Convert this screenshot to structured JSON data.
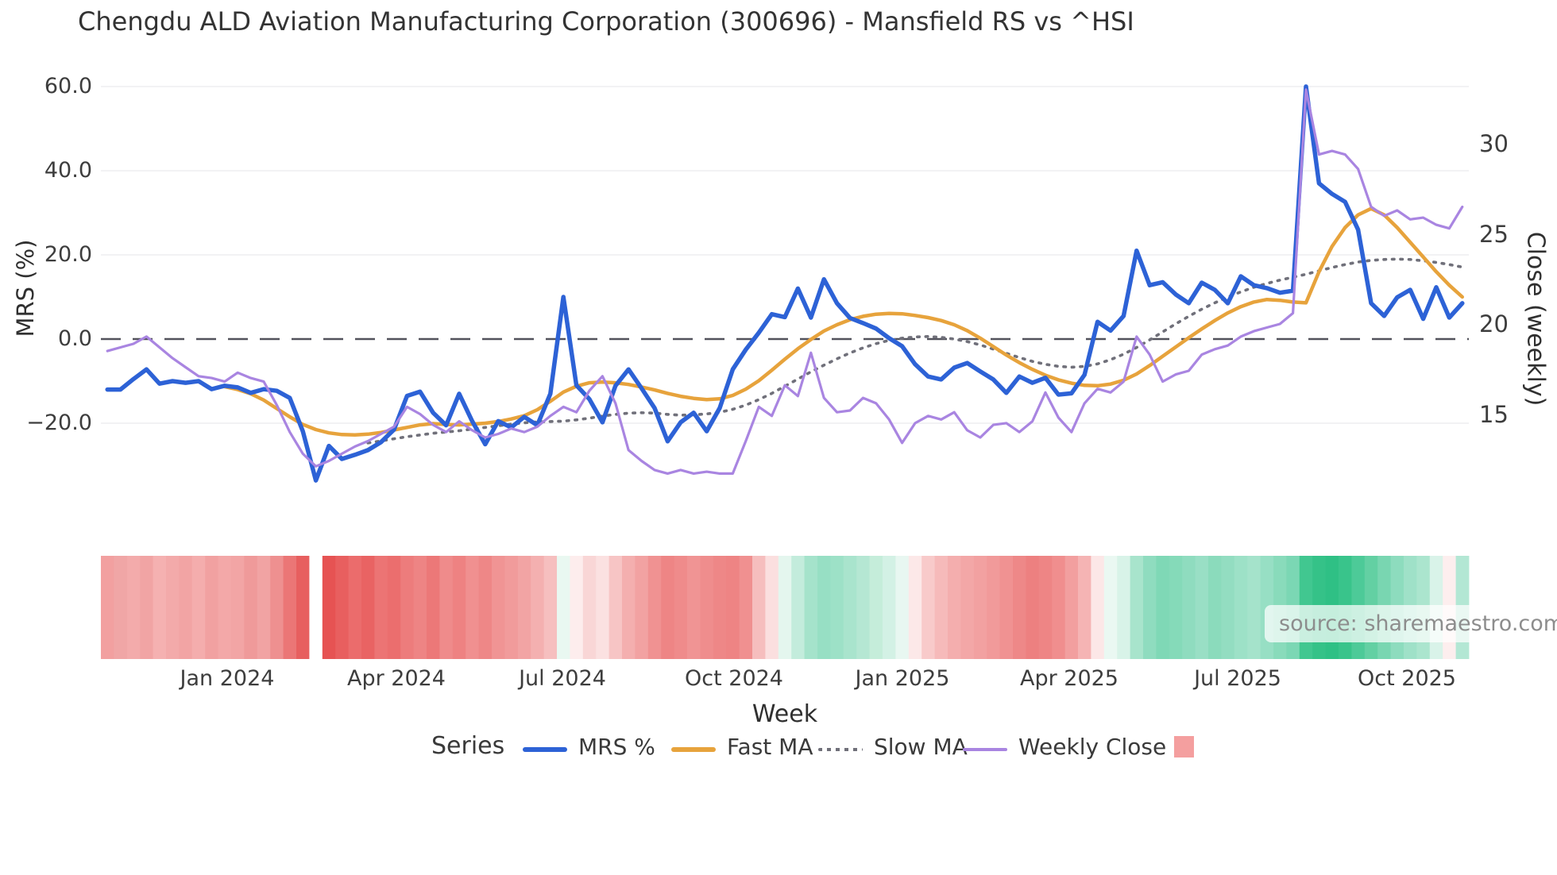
{
  "title": "Chengdu ALD Aviation Manufacturing Corporation (300696) - Mansfield RS vs ^HSI",
  "source": "source: sharemaestro.com",
  "axes": {
    "left": {
      "label": "MRS (%)",
      "ticks": [
        "60.0",
        "40.0",
        "20.0",
        "0.0",
        "−20.0"
      ]
    },
    "right": {
      "label": "Close (weekly)",
      "ticks": [
        "30",
        "25",
        "20",
        "15"
      ]
    },
    "x": {
      "label": "Week",
      "ticks": [
        "Jan 2024",
        "Apr 2024",
        "Jul 2024",
        "Oct 2024",
        "Jan 2025",
        "Apr 2025",
        "Jul 2025",
        "Oct 2025"
      ]
    }
  },
  "legend": {
    "title": "Series",
    "items": [
      {
        "label": "MRS %",
        "color": "#2d62d6",
        "style": "solid"
      },
      {
        "label": "Fast MA",
        "color": "#e7a33c",
        "style": "solid"
      },
      {
        "label": "Slow MA",
        "color": "#70707a",
        "style": "dotted"
      },
      {
        "label": "Weekly Close",
        "color": "#a985e1",
        "style": "solid"
      },
      {
        "label": "",
        "color": "#f49f9f",
        "style": "square"
      }
    ]
  },
  "chart_data": {
    "type": "line",
    "title": "Chengdu ALD Aviation Manufacturing Corporation (300696) - Mansfield RS vs ^HSI",
    "xlabel": "Week",
    "ylabel_left": "MRS (%)",
    "ylabel_right": "Close (weekly)",
    "n_weeks": 105,
    "x_tick_week_index": [
      9,
      22,
      35,
      48,
      61,
      74,
      87,
      100
    ],
    "x_tick_labels": [
      "Jan 2024",
      "Apr 2024",
      "Jul 2024",
      "Oct 2024",
      "Jan 2025",
      "Apr 2025",
      "Jul 2025",
      "Oct 2025"
    ],
    "left_ticks": [
      60,
      40,
      20,
      0,
      -20
    ],
    "left_ylim": [
      -40,
      65
    ],
    "right_ticks": [
      30,
      25,
      20,
      15
    ],
    "right_ylim": [
      9.5,
      34.5
    ],
    "zero_dashed_line": 0,
    "grid": "horizontal-light",
    "legend_position": "bottom",
    "series": [
      {
        "name": "MRS %",
        "axis": "left",
        "color": "#2d62d6",
        "width": 5.5,
        "dash": null,
        "values": [
          -12,
          -12,
          -9.5,
          -7.2,
          -10.6,
          -10,
          -10.4,
          -10,
          -11.9,
          -11.1,
          -11.5,
          -12.8,
          -11.9,
          -12.3,
          -14,
          -21.9,
          -33.6,
          -25.4,
          -28.5,
          -27.5,
          -26.4,
          -24.5,
          -21.5,
          -13.5,
          -12.5,
          -17.5,
          -20.5,
          -13,
          -19.5,
          -25,
          -19.5,
          -21,
          -18.5,
          -20.5,
          -13,
          10,
          -11,
          -14.3,
          -19.8,
          -11.1,
          -7.2,
          -11.7,
          -16.4,
          -24.3,
          -19.8,
          -17.5,
          -21.9,
          -16.4,
          -7.2,
          -2.5,
          1.5,
          5.9,
          5.2,
          12,
          5.1,
          14.2,
          8.5,
          5,
          3.8,
          2.5,
          0.2,
          -1.7,
          -6,
          -8.9,
          -9.6,
          -6.8,
          -5.7,
          -7.7,
          -9.6,
          -12.8,
          -8.9,
          -10.4,
          -9.2,
          -13.2,
          -12.9,
          -8.5,
          4.1,
          2,
          5.5,
          21,
          12.8,
          13.5,
          10.6,
          8.5,
          13.4,
          11.7,
          8.5,
          14.9,
          12.8,
          12.1,
          11,
          11.5,
          60,
          37,
          34.5,
          32.6,
          26,
          8.5,
          5.5,
          9.9,
          11.7,
          4.8,
          12.3,
          5.1,
          8.5
        ]
      },
      {
        "name": "Fast MA",
        "axis": "left",
        "color": "#e7a33c",
        "width": 4.5,
        "dash": null,
        "values": [
          null,
          null,
          null,
          null,
          null,
          null,
          null,
          null,
          null,
          -11.3,
          -12,
          -13,
          -14.5,
          -16.5,
          -18.5,
          -20.3,
          -21.5,
          -22.3,
          -22.7,
          -22.8,
          -22.6,
          -22.2,
          -21.6,
          -21,
          -20.4,
          -20.1,
          -20.3,
          -20.4,
          -20.2,
          -20,
          -19.6,
          -19,
          -18.2,
          -16.8,
          -14.8,
          -12.6,
          -11.2,
          -10.4,
          -10.2,
          -10.4,
          -10.8,
          -11.4,
          -12.1,
          -12.9,
          -13.6,
          -14.1,
          -14.4,
          -14.2,
          -13.4,
          -11.9,
          -9.9,
          -7.4,
          -4.8,
          -2.3,
          -0.1,
          1.9,
          3.4,
          4.6,
          5.4,
          5.9,
          6.1,
          6,
          5.6,
          5.1,
          4.4,
          3.4,
          2,
          0.2,
          -1.8,
          -3.8,
          -5.6,
          -7.2,
          -8.6,
          -9.7,
          -10.5,
          -11,
          -11.1,
          -10.7,
          -9.8,
          -8.3,
          -6.3,
          -4.1,
          -1.9,
          0.3,
          2.4,
          4.4,
          6.2,
          7.7,
          8.8,
          9.4,
          9.2,
          8.8,
          8.6,
          16,
          22,
          26.5,
          29.5,
          31,
          29.5,
          26.5,
          23,
          19.5,
          16,
          12.8,
          10
        ]
      },
      {
        "name": "Slow MA",
        "axis": "left",
        "color": "#70707a",
        "width": 3.6,
        "dash": "2.5 8",
        "values": [
          null,
          null,
          null,
          null,
          null,
          null,
          null,
          null,
          null,
          null,
          null,
          null,
          null,
          null,
          null,
          null,
          null,
          null,
          null,
          null,
          -24.7,
          -24.2,
          -23.7,
          -23.2,
          -22.8,
          -22.4,
          -22.1,
          -21.8,
          -21.4,
          -21,
          -20.6,
          -20.2,
          -19.9,
          -19.7,
          -19.6,
          -19.5,
          -19.2,
          -18.8,
          -18.3,
          -17.9,
          -17.6,
          -17.5,
          -17.6,
          -17.9,
          -18.1,
          -18,
          -17.8,
          -17.4,
          -16.7,
          -15.7,
          -14.4,
          -12.9,
          -11.2,
          -9.5,
          -7.8,
          -6.2,
          -4.7,
          -3.3,
          -2.1,
          -1.1,
          -0.3,
          0.2,
          0.5,
          0.6,
          0.4,
          0,
          -0.6,
          -1.4,
          -2.4,
          -3.4,
          -4.4,
          -5.3,
          -6,
          -6.5,
          -6.7,
          -6.5,
          -5.9,
          -4.9,
          -3.6,
          -2,
          -0.2,
          1.7,
          3.6,
          5.4,
          7.1,
          8.6,
          10,
          11.2,
          12.3,
          13.2,
          14,
          14.7,
          15.4,
          16.2,
          17,
          17.7,
          18.3,
          18.7,
          18.9,
          19,
          18.9,
          18.6,
          18.2,
          17.7,
          17.1
        ]
      },
      {
        "name": "Weekly Close",
        "axis": "right",
        "color": "#a985e1",
        "width": 3.2,
        "dash": null,
        "values": [
          18.5,
          18.7,
          18.9,
          19.3,
          18.7,
          18.1,
          17.6,
          17.1,
          17,
          16.8,
          17.3,
          17,
          16.8,
          15.5,
          14,
          12.8,
          12.1,
          12.4,
          12.8,
          13.2,
          13.5,
          13.9,
          14.3,
          15.4,
          15,
          14.4,
          14,
          14.6,
          14.1,
          13.7,
          13.9,
          14.2,
          14,
          14.3,
          14.9,
          15.4,
          15.1,
          16.3,
          17.1,
          15.6,
          13,
          12.4,
          11.9,
          11.7,
          11.9,
          11.7,
          11.8,
          11.7,
          11.7,
          13.5,
          15.4,
          14.9,
          16.6,
          16,
          18.4,
          15.9,
          15.1,
          15.2,
          15.9,
          15.6,
          14.7,
          13.4,
          14.5,
          14.9,
          14.7,
          15.1,
          14.1,
          13.7,
          14.4,
          14.5,
          14,
          14.6,
          16.2,
          14.8,
          14,
          15.6,
          16.4,
          16.2,
          16.8,
          19.3,
          18.3,
          16.8,
          17.2,
          17.4,
          18.3,
          18.6,
          18.8,
          19.3,
          19.6,
          19.8,
          20,
          20.6,
          33,
          29.4,
          29.6,
          29.4,
          28.6,
          26.5,
          26,
          26.3,
          25.8,
          25.9,
          25.5,
          25.3,
          26.5
        ]
      }
    ],
    "heatmap_strip": {
      "description": "weekly relative-performance heatmap (red = underperform, green = outperform, white = missing week)",
      "colors": [
        "#f2a0a0",
        "#f0a6a6",
        "#f3abab",
        "#f1a4a4",
        "#f5b1b1",
        "#f3aaaa",
        "#f2a4a4",
        "#f4adad",
        "#f1a1a1",
        "#f3a8a8",
        "#f2a5a5",
        "#ef9a9a",
        "#f1a3a3",
        "#ee9090",
        "#eb7676",
        "#e75f5f",
        "#ffffff",
        "#e65353",
        "#e85f5f",
        "#eb6c6c",
        "#e96363",
        "#ec7474",
        "#eb6e6e",
        "#ed7c7c",
        "#ee8484",
        "#ec7878",
        "#ef8b8b",
        "#ee8282",
        "#f09090",
        "#ee8787",
        "#f09494",
        "#f19b9b",
        "#f2a4a4",
        "#f4b0b0",
        "#f6bfbf",
        "#e9f8f1",
        "#fdeded",
        "#f9d6d6",
        "#fbe1e1",
        "#f7c5c5",
        "#f4afaf",
        "#f2a2a2",
        "#f09292",
        "#ee8585",
        "#ef8b8b",
        "#f09494",
        "#ef8d8d",
        "#ee8787",
        "#ee8484",
        "#f09090",
        "#f6bebe",
        "#fbdfdf",
        "#e4f6ee",
        "#c3ecdc",
        "#a5e3cb",
        "#97dfc4",
        "#9de1c7",
        "#a9e4cd",
        "#b5e7d3",
        "#c5edda",
        "#d3f1e5",
        "#e8f7f1",
        "#fce8e8",
        "#f8caca",
        "#f6baba",
        "#f4aeae",
        "#f3a7a7",
        "#f2a1a1",
        "#f19a9a",
        "#f09292",
        "#ee8888",
        "#ed8080",
        "#ee8585",
        "#f08e8e",
        "#f29f9f",
        "#f5b4b4",
        "#fce7e7",
        "#eaf8f2",
        "#d8f3e8",
        "#a8e4cc",
        "#8fdcbf",
        "#7fd8b6",
        "#85dab9",
        "#8fdcbf",
        "#99dfc5",
        "#8bdbbc",
        "#93ddc1",
        "#9de1c7",
        "#a5e3cb",
        "#97dfc4",
        "#89dbbb",
        "#7bd7b4",
        "#41c790",
        "#35c288",
        "#2fc085",
        "#39c48b",
        "#4dca98",
        "#63d0a3",
        "#79d6b1",
        "#8ddcbe",
        "#9fe1c8",
        "#abe5ce",
        "#d9f3e9",
        "#fdeeee",
        "#b3e7d4"
      ]
    }
  }
}
